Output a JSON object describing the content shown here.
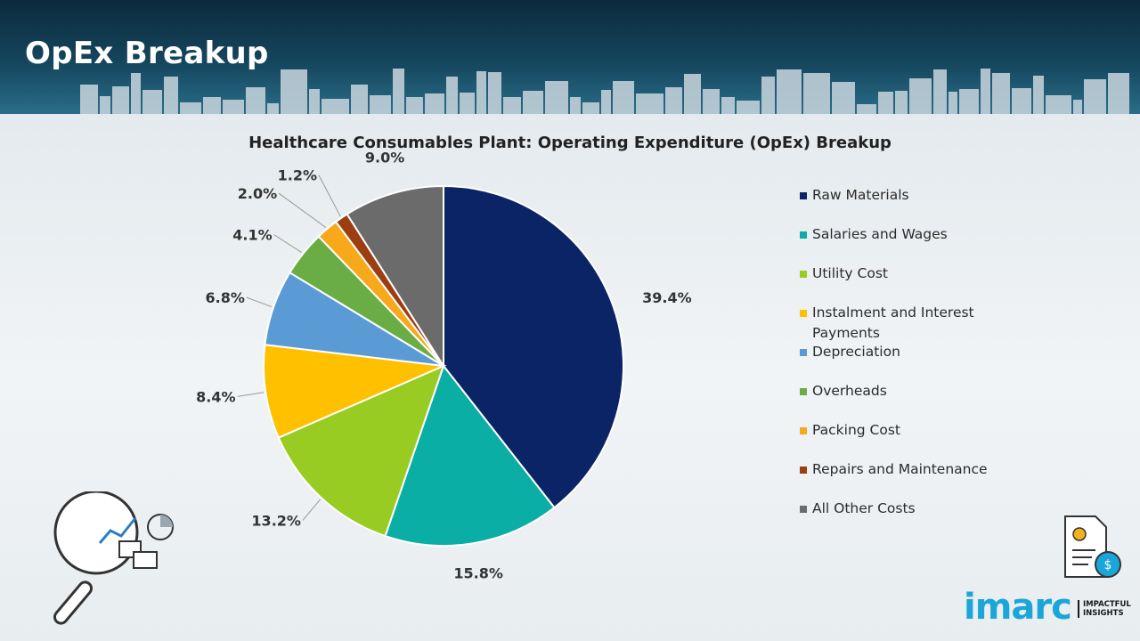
{
  "header": {
    "title": "OpEx Breakup"
  },
  "chart_data": {
    "type": "pie",
    "title": "Healthcare Consumables Plant: Operating Expenditure (OpEx) Breakup",
    "legend_position": "right",
    "slices": [
      {
        "name": "Raw Materials",
        "value": 39.4,
        "label": "39.4%",
        "color": "#0b2466"
      },
      {
        "name": "Salaries and Wages",
        "value": 15.8,
        "label": "15.8%",
        "color": "#0aaea5"
      },
      {
        "name": "Utility Cost",
        "value": 13.2,
        "label": "13.2%",
        "color": "#99cc22"
      },
      {
        "name": "Instalment and Interest Payments",
        "value": 8.4,
        "label": "8.4%",
        "color": "#ffc000"
      },
      {
        "name": "Depreciation",
        "value": 6.8,
        "label": "6.8%",
        "color": "#5b9bd5"
      },
      {
        "name": "Overheads",
        "value": 4.1,
        "label": "4.1%",
        "color": "#6aad45"
      },
      {
        "name": "Packing Cost",
        "value": 2.0,
        "label": "2.0%",
        "color": "#f7a81b"
      },
      {
        "name": "Repairs and Maintenance",
        "value": 1.2,
        "label": "1.2%",
        "color": "#9c3e12"
      },
      {
        "name": "All Other Costs",
        "value": 9.0,
        "label": "9.0%",
        "color": "#6b6b6b"
      }
    ]
  },
  "logo": {
    "name": "imarc",
    "tagline": "IMPACTFUL INSIGHTS"
  },
  "icons": {
    "left": "analytics-magnifier-icon",
    "right": "cost-document-icon"
  }
}
